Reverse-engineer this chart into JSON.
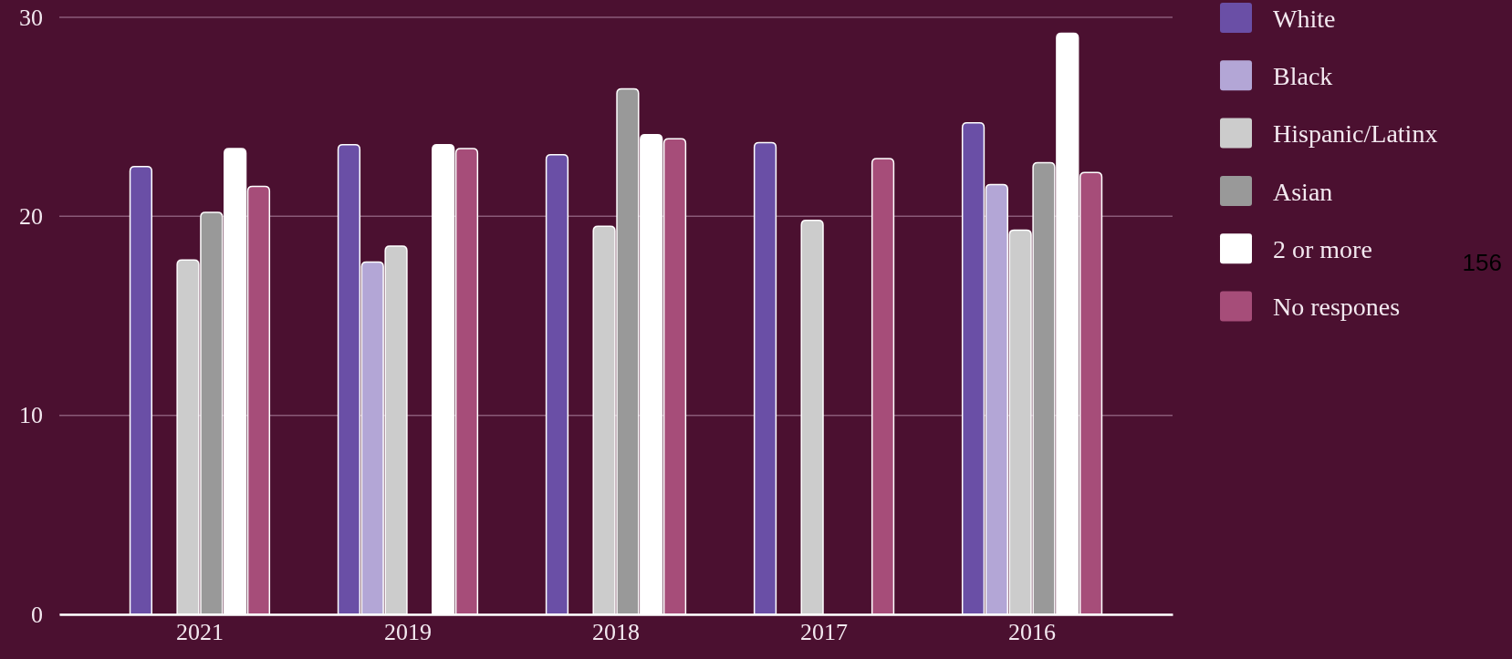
{
  "chart_data": {
    "type": "bar",
    "categories": [
      "2021",
      "2019",
      "2018",
      "2017",
      "2016"
    ],
    "series": [
      {
        "name": "White",
        "color": "#6a4fa6",
        "values": [
          22.5,
          23.6,
          23.1,
          23.7,
          24.7
        ]
      },
      {
        "name": "Black",
        "color": "#b3a6d6",
        "values": [
          null,
          17.7,
          null,
          null,
          21.6
        ]
      },
      {
        "name": "Hispanic/Latinx",
        "color": "#cccccc",
        "values": [
          17.8,
          18.5,
          19.5,
          19.8,
          19.3
        ]
      },
      {
        "name": "Asian",
        "color": "#999999",
        "values": [
          20.2,
          null,
          26.4,
          null,
          22.7
        ]
      },
      {
        "name": "2 or more",
        "color": "#ffffff",
        "values": [
          23.4,
          23.6,
          24.1,
          null,
          29.2
        ]
      },
      {
        "name": "No respones",
        "color": "#a64d79",
        "values": [
          21.5,
          23.4,
          23.9,
          22.9,
          22.2
        ]
      }
    ],
    "ylim": [
      0,
      30
    ],
    "yticks": [
      0,
      10,
      20,
      30
    ],
    "grid": "y",
    "legend": "top right",
    "annotations": [
      "156"
    ]
  }
}
